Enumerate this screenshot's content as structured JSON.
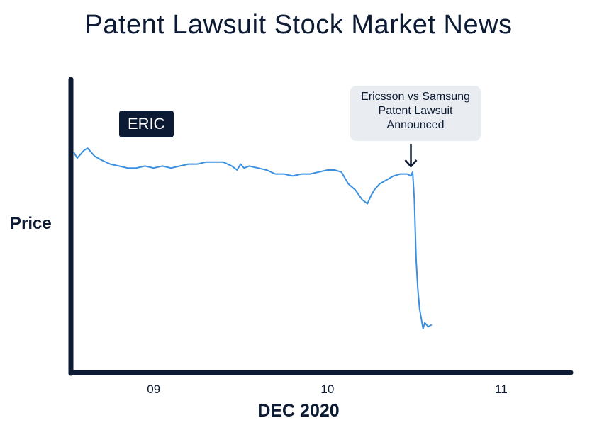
{
  "chart_data": {
    "type": "line",
    "title": "Patent Lawsuit Stock Market News",
    "xlabel": "DEC 2020",
    "ylabel": "Price",
    "series_label": "ERIC",
    "x_ticks": [
      "09",
      "10",
      "11"
    ],
    "x_tick_positions": [
      9,
      10,
      11
    ],
    "xlim": [
      8.54,
      11.4
    ],
    "ylim": [
      0,
      100
    ],
    "annotation": {
      "lines": [
        "Ericsson vs Samsung",
        "Patent Lawsuit",
        "Announced"
      ],
      "x": 10.48
    },
    "series": [
      {
        "name": "ERIC",
        "x": [
          8.54,
          8.56,
          8.6,
          8.62,
          8.66,
          8.7,
          8.75,
          8.8,
          8.85,
          8.9,
          8.95,
          9.0,
          9.05,
          9.1,
          9.15,
          9.2,
          9.25,
          9.3,
          9.35,
          9.4,
          9.45,
          9.48,
          9.5,
          9.52,
          9.55,
          9.6,
          9.65,
          9.7,
          9.75,
          9.8,
          9.85,
          9.9,
          9.95,
          10.0,
          10.04,
          10.08,
          10.12,
          10.16,
          10.2,
          10.23,
          10.25,
          10.27,
          10.3,
          10.34,
          10.38,
          10.42,
          10.46,
          10.48,
          10.49,
          10.5,
          10.51,
          10.52,
          10.53,
          10.54,
          10.55,
          10.56,
          10.58,
          10.6
        ],
        "y": [
          94,
          91,
          95,
          96,
          92,
          90,
          88,
          87,
          86,
          86,
          87,
          86,
          87,
          86,
          87,
          88,
          88,
          89,
          89,
          89,
          87,
          85,
          88,
          86,
          87,
          86,
          85,
          83,
          83,
          82,
          83,
          83,
          84,
          85,
          85,
          84,
          78,
          75,
          70,
          68,
          72,
          75,
          78,
          80,
          82,
          83,
          83,
          82,
          84,
          70,
          40,
          25,
          15,
          10,
          5,
          8,
          6,
          7
        ]
      }
    ]
  },
  "colors": {
    "line": "#3b8fe0",
    "axis": "#0c1b33",
    "text": "#0c1b33",
    "callout_bg": "#e9edf1"
  }
}
